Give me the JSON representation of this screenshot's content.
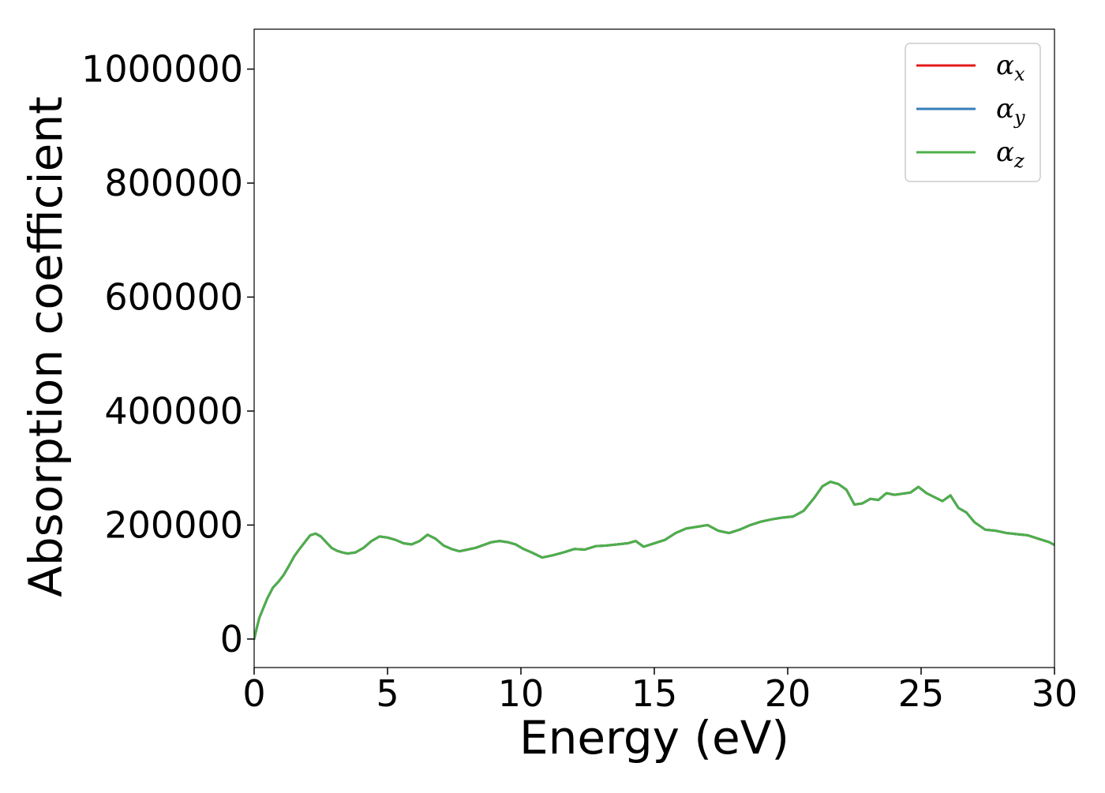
{
  "chart_data": {
    "type": "line",
    "xlabel": "Energy (eV)",
    "ylabel": "Absorption coefficient",
    "xlim": [
      0,
      30
    ],
    "ylim": [
      -50000,
      1070000
    ],
    "grid": false,
    "legend_position": "top-right",
    "x_ticks": [
      0,
      5,
      10,
      15,
      20,
      25,
      30
    ],
    "x_tick_labels": [
      "0",
      "5",
      "10",
      "15",
      "20",
      "25",
      "30"
    ],
    "y_ticks": [
      0,
      200000,
      400000,
      600000,
      800000,
      1000000
    ],
    "y_tick_labels": [
      "0",
      "200000",
      "400000",
      "600000",
      "800000",
      "1000000"
    ],
    "x": [
      0,
      0.1,
      0.2,
      0.35,
      0.5,
      0.7,
      0.9,
      1.1,
      1.3,
      1.5,
      1.7,
      1.9,
      2.1,
      2.3,
      2.5,
      2.7,
      2.9,
      3.1,
      3.3,
      3.5,
      3.8,
      4.1,
      4.4,
      4.7,
      5.0,
      5.3,
      5.6,
      5.9,
      6.2,
      6.5,
      6.8,
      7.1,
      7.4,
      7.7,
      8.0,
      8.3,
      8.6,
      8.9,
      9.2,
      9.5,
      9.8,
      10.1,
      10.4,
      10.8,
      11.2,
      11.6,
      12.0,
      12.4,
      12.8,
      13.2,
      13.6,
      14.0,
      14.3,
      14.6,
      15.0,
      15.4,
      15.8,
      16.2,
      16.6,
      17.0,
      17.4,
      17.8,
      18.2,
      18.6,
      19.0,
      19.4,
      19.8,
      20.2,
      20.6,
      21.0,
      21.3,
      21.6,
      21.9,
      22.2,
      22.5,
      22.8,
      23.1,
      23.4,
      23.7,
      24.0,
      24.3,
      24.6,
      24.9,
      25.2,
      25.5,
      25.8,
      26.1,
      26.4,
      26.7,
      27.0,
      27.4,
      27.8,
      28.2,
      28.6,
      29.0,
      29.4,
      29.8,
      30.0
    ],
    "series": [
      {
        "name": "α_x",
        "color": "#e41a1c",
        "values": [
          0,
          20000,
          38000,
          55000,
          72000,
          90000,
          100000,
          112000,
          128000,
          145000,
          158000,
          170000,
          182000,
          185000,
          180000,
          170000,
          160000,
          155000,
          152000,
          150000,
          152000,
          160000,
          172000,
          180000,
          178000,
          174000,
          168000,
          166000,
          172000,
          183000,
          176000,
          164000,
          158000,
          154000,
          157000,
          160000,
          165000,
          170000,
          172000,
          170000,
          166000,
          158000,
          152000,
          143000,
          147000,
          152000,
          158000,
          157000,
          163000,
          164000,
          166000,
          168000,
          172000,
          162000,
          168000,
          174000,
          186000,
          194000,
          197000,
          200000,
          190000,
          186000,
          192000,
          200000,
          206000,
          210000,
          213000,
          215000,
          225000,
          248000,
          268000,
          276000,
          272000,
          262000,
          236000,
          238000,
          246000,
          244000,
          256000,
          253000,
          255000,
          257000,
          267000,
          256000,
          249000,
          242000,
          252000,
          230000,
          222000,
          205000,
          192000,
          190000,
          186000,
          184000,
          182000,
          176000,
          170000,
          165000
        ]
      },
      {
        "name": "α_y",
        "color": "#377eb8",
        "values": [
          0,
          20000,
          38000,
          55000,
          72000,
          90000,
          100000,
          112000,
          128000,
          145000,
          158000,
          170000,
          182000,
          185000,
          180000,
          170000,
          160000,
          155000,
          152000,
          150000,
          152000,
          160000,
          172000,
          180000,
          178000,
          174000,
          168000,
          166000,
          172000,
          183000,
          176000,
          164000,
          158000,
          154000,
          157000,
          160000,
          165000,
          170000,
          172000,
          170000,
          166000,
          158000,
          152000,
          143000,
          147000,
          152000,
          158000,
          157000,
          163000,
          164000,
          166000,
          168000,
          172000,
          162000,
          168000,
          174000,
          186000,
          194000,
          197000,
          200000,
          190000,
          186000,
          192000,
          200000,
          206000,
          210000,
          213000,
          215000,
          225000,
          248000,
          268000,
          276000,
          272000,
          262000,
          236000,
          238000,
          246000,
          244000,
          256000,
          253000,
          255000,
          257000,
          267000,
          256000,
          249000,
          242000,
          252000,
          230000,
          222000,
          205000,
          192000,
          190000,
          186000,
          184000,
          182000,
          176000,
          170000,
          165000
        ]
      },
      {
        "name": "α_z",
        "color": "#4daf4a",
        "values": [
          0,
          20000,
          38000,
          55000,
          72000,
          90000,
          100000,
          112000,
          128000,
          145000,
          158000,
          170000,
          182000,
          185000,
          180000,
          170000,
          160000,
          155000,
          152000,
          150000,
          152000,
          160000,
          172000,
          180000,
          178000,
          174000,
          168000,
          166000,
          172000,
          183000,
          176000,
          164000,
          158000,
          154000,
          157000,
          160000,
          165000,
          170000,
          172000,
          170000,
          166000,
          158000,
          152000,
          143000,
          147000,
          152000,
          158000,
          157000,
          163000,
          164000,
          166000,
          168000,
          172000,
          162000,
          168000,
          174000,
          186000,
          194000,
          197000,
          200000,
          190000,
          186000,
          192000,
          200000,
          206000,
          210000,
          213000,
          215000,
          225000,
          248000,
          268000,
          276000,
          272000,
          262000,
          236000,
          238000,
          246000,
          244000,
          256000,
          253000,
          255000,
          257000,
          267000,
          256000,
          249000,
          242000,
          252000,
          230000,
          222000,
          205000,
          192000,
          190000,
          186000,
          184000,
          182000,
          176000,
          170000,
          165000
        ]
      }
    ],
    "legend": [
      {
        "symbol": "α",
        "subscript": "x",
        "color": "#e41a1c"
      },
      {
        "symbol": "α",
        "subscript": "y",
        "color": "#377eb8"
      },
      {
        "symbol": "α",
        "subscript": "z",
        "color": "#4daf4a"
      }
    ]
  }
}
